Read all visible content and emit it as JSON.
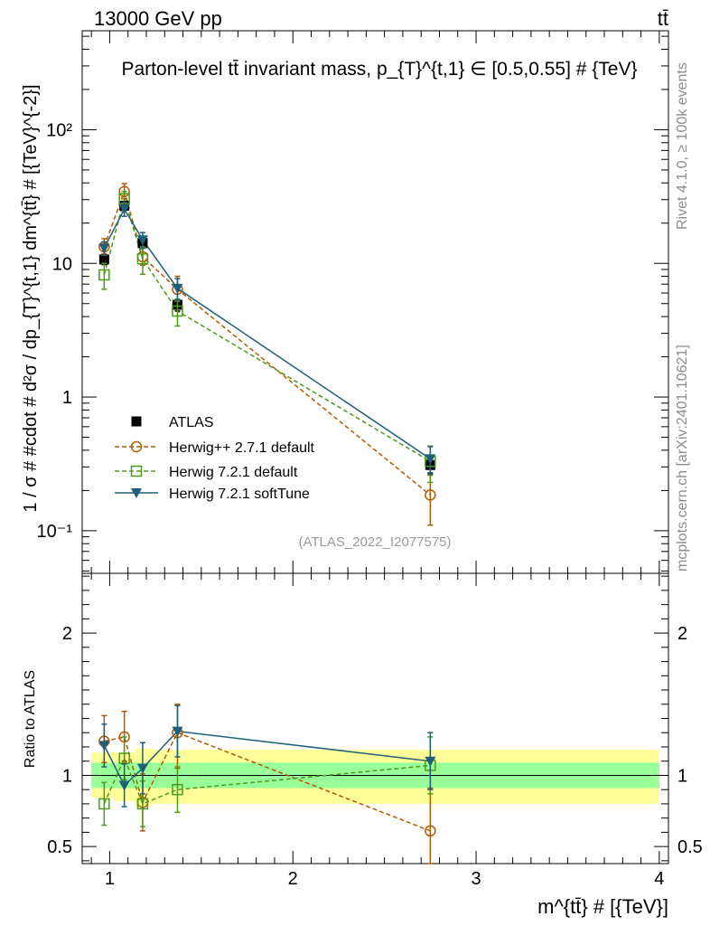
{
  "header": {
    "left": "13000 GeV pp",
    "right": "tt̄"
  },
  "side_labels": {
    "rivet": "Rivet 4.1.0, ≥ 100k events",
    "mcplots": "mcplots.cern.ch [arXiv:2401.10621]"
  },
  "colors": {
    "atlas": "#000000",
    "herwigpp": "#b35900",
    "herwig721": "#4d9a1a",
    "softtune": "#1f5f78",
    "band_inner": "#99ff99",
    "band_outer": "#ffff99"
  },
  "chart_data": [
    {
      "type": "scatter",
      "panel": "main",
      "title": "Parton-level tt̄ invariant mass, p_{T}^{t,1} ∈ [0.5,0.55] # {TeV}",
      "ylabel": "1 / σ # #cdot # d²σ / dp_{T}^{t,1} dm^{tt̄} # [{TeV}^{-2}]",
      "xlabel": "m^{tt̄} # [{TeV}]",
      "yscale": "log",
      "xlim": [
        0.85,
        4.05
      ],
      "ylim": [
        0.048,
        550
      ],
      "x_ticks": [
        "1",
        "2",
        "3",
        "4"
      ],
      "y_ticks": [
        "10⁻¹",
        "1",
        "10",
        "10²"
      ],
      "watermark": "(ATLAS_2022_I2077575)",
      "legend": [
        "ATLAS",
        "Herwig++ 2.7.1 default",
        "Herwig 7.2.1 default",
        "Herwig 7.2.1 softTune"
      ],
      "series": [
        {
          "name": "ATLAS",
          "x": [
            0.97,
            1.08,
            1.18,
            1.37,
            2.75
          ],
          "y": [
            10.7,
            27.0,
            14.2,
            4.9,
            0.31
          ],
          "err": [
            0.9,
            2.0,
            1.2,
            0.5,
            0.04
          ]
        },
        {
          "name": "Herwig++ 2.7.1 default",
          "x": [
            0.97,
            1.08,
            1.18,
            1.37,
            2.75
          ],
          "y": [
            13.3,
            34.5,
            11.2,
            6.4,
            0.185
          ],
          "err_lo": [
            1.5,
            4.0,
            1.5,
            1.2,
            0.075
          ],
          "err_hi": [
            2.0,
            5.0,
            2.0,
            1.6,
            0.075
          ]
        },
        {
          "name": "Herwig 7.2.1 default",
          "x": [
            0.97,
            1.08,
            1.18,
            1.37,
            2.75
          ],
          "y": [
            8.2,
            30.5,
            10.8,
            4.4,
            0.33
          ],
          "err_lo": [
            1.8,
            4.0,
            2.5,
            1.0,
            0.1
          ],
          "err_hi": [
            1.8,
            4.0,
            2.5,
            1.0,
            0.1
          ]
        },
        {
          "name": "Herwig 7.2.1 softTune",
          "x": [
            0.97,
            1.08,
            1.18,
            1.37,
            2.75
          ],
          "y": [
            13.0,
            25.5,
            15.0,
            6.5,
            0.345
          ],
          "err_lo": [
            1.5,
            3.0,
            2.0,
            1.2,
            0.08
          ],
          "err_hi": [
            1.5,
            3.0,
            2.0,
            1.2,
            0.08
          ]
        }
      ]
    },
    {
      "type": "scatter",
      "panel": "ratio",
      "ylabel": "Ratio to ATLAS",
      "ylim": [
        0.38,
        2.42
      ],
      "y_ticks": [
        "0.5",
        "1",
        "2"
      ],
      "reference": 1,
      "band_edges": [
        0.9,
        1.02,
        1.14,
        1.23,
        1.48,
        4.0
      ],
      "band_inner": [
        [
          0.91,
          1.09
        ],
        [
          0.91,
          1.09
        ],
        [
          0.91,
          1.09
        ],
        [
          0.91,
          1.09
        ],
        [
          0.91,
          1.09
        ]
      ],
      "band_outer": [
        [
          0.84,
          1.16
        ],
        [
          0.82,
          1.16
        ],
        [
          0.78,
          1.19
        ],
        [
          0.8,
          1.18
        ],
        [
          0.8,
          1.18
        ]
      ],
      "series": [
        {
          "name": "Herwig++ 2.7.1 default",
          "x": [
            0.97,
            1.08,
            1.18,
            1.37,
            2.75
          ],
          "y": [
            1.24,
            1.27,
            0.81,
            1.3,
            0.61
          ],
          "err_lo": [
            0.15,
            0.17,
            0.2,
            0.25,
            0.3
          ],
          "err_hi": [
            0.18,
            0.18,
            0.2,
            0.2,
            0.3
          ]
        },
        {
          "name": "Herwig 7.2.1 default",
          "x": [
            0.97,
            1.08,
            1.18,
            1.37,
            2.75
          ],
          "y": [
            0.8,
            1.12,
            0.8,
            0.9,
            1.07
          ],
          "err_lo": [
            0.15,
            0.15,
            0.16,
            0.16,
            0.2
          ],
          "err_hi": [
            0.15,
            0.15,
            0.16,
            0.16,
            0.2
          ]
        },
        {
          "name": "Herwig 7.2.1 softTune",
          "x": [
            0.97,
            1.08,
            1.18,
            1.37,
            2.75
          ],
          "y": [
            1.21,
            0.93,
            1.05,
            1.31,
            1.1
          ],
          "err_lo": [
            0.15,
            0.15,
            0.18,
            0.18,
            0.2
          ],
          "err_hi": [
            0.15,
            0.15,
            0.18,
            0.18,
            0.2
          ]
        }
      ]
    }
  ]
}
